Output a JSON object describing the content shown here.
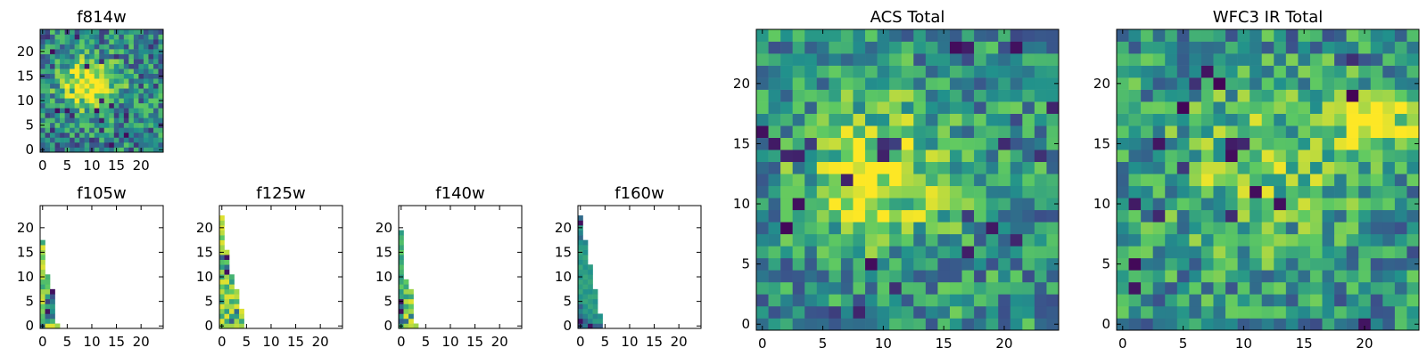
{
  "figure": {
    "colormap": "viridis",
    "colors": [
      "#440154",
      "#3b528b",
      "#21918c",
      "#5ec962",
      "#fde725"
    ]
  },
  "chart_data": [
    {
      "type": "heatmap",
      "title": "f814w",
      "xlim": [
        -0.5,
        24.5
      ],
      "ylim": [
        -0.5,
        24.5
      ],
      "xticks": [
        "0",
        "5",
        "10",
        "15",
        "20"
      ],
      "yticks": [
        "0",
        "5",
        "10",
        "15",
        "20"
      ],
      "grid": false,
      "image": {
        "size": 25,
        "features": [
          {
            "cx": 9.5,
            "cy": 13.5,
            "sx": 4.0,
            "sy": 3.5,
            "amp": 0.6
          }
        ],
        "noise": 0.3,
        "seed": 11,
        "base": 0.45
      }
    },
    {
      "type": "heatmap",
      "title": "f105w",
      "xlim": [
        -0.5,
        24.5
      ],
      "ylim": [
        -0.5,
        24.5
      ],
      "xticks": [
        "0",
        "5",
        "10",
        "15",
        "20"
      ],
      "yticks": [
        "0",
        "5",
        "10",
        "15",
        "20"
      ],
      "grid": false,
      "columns": [
        {
          "x": 0,
          "y_start": 0,
          "values": [
            0.35,
            0.65,
            0.7,
            0.8,
            0.75,
            0.95,
            0.9,
            0.85,
            0.6,
            0.7,
            0.9,
            0.85,
            0.95,
            0.9,
            0.75,
            0.85,
            0.95,
            0.6
          ]
        },
        {
          "x": 1,
          "y_start": 0,
          "values": [
            0.95,
            0.55,
            0.3,
            0.05,
            0.6,
            0.2,
            0.55,
            0.85,
            0.75,
            0.7,
            0.65
          ]
        },
        {
          "x": 2,
          "y_start": 0,
          "values": [
            0.95,
            0.65,
            0.35,
            0.5,
            0.55,
            0.4,
            0.25,
            0.05
          ]
        },
        {
          "x": 3,
          "y_start": 0,
          "values": [
            0.85
          ]
        }
      ]
    },
    {
      "type": "heatmap",
      "title": "f125w",
      "xlim": [
        -0.5,
        24.5
      ],
      "ylim": [
        -0.5,
        24.5
      ],
      "xticks": [
        "0",
        "5",
        "10",
        "15",
        "20"
      ],
      "yticks": [
        "0",
        "5",
        "10",
        "15",
        "20"
      ],
      "grid": false,
      "columns": [
        {
          "x": 0,
          "y_start": 0,
          "values": [
            0.8,
            0.95,
            0.6,
            0.8,
            0.95,
            0.55,
            0.7,
            0.9,
            0.75,
            0.95,
            0.6,
            0.85,
            0.55,
            0.7,
            0.3,
            0.9,
            0.85,
            0.95,
            0.75,
            0.9,
            0.95,
            0.85,
            0.95
          ]
        },
        {
          "x": 1,
          "y_start": 0,
          "values": [
            0.85,
            0.6,
            0.95,
            0.55,
            0.85,
            0.9,
            0.95,
            0.7,
            0.6,
            0.95,
            0.85,
            0.05,
            0.35,
            0.75,
            0.05,
            0.9
          ]
        },
        {
          "x": 2,
          "y_start": 0,
          "values": [
            0.85,
            0.3,
            0.55,
            0.95,
            0.85,
            0.6,
            0.95,
            0.75,
            0.9,
            0.55,
            0.65
          ]
        },
        {
          "x": 3,
          "y_start": 0,
          "values": [
            0.9,
            0.85,
            0.55,
            0.35,
            0.95,
            0.65,
            0.9,
            0.85
          ]
        },
        {
          "x": 4,
          "y_start": 0,
          "values": [
            0.85,
            0.6,
            0.9,
            0.95
          ]
        }
      ]
    },
    {
      "type": "heatmap",
      "title": "f140w",
      "xlim": [
        -0.5,
        24.5
      ],
      "ylim": [
        -0.5,
        24.5
      ],
      "xticks": [
        "0",
        "5",
        "10",
        "15",
        "20"
      ],
      "yticks": [
        "0",
        "5",
        "10",
        "15",
        "20"
      ],
      "grid": false,
      "columns": [
        {
          "x": 0,
          "y_start": 0,
          "values": [
            0.6,
            0.3,
            0.55,
            0.05,
            0.35,
            0.05,
            0.6,
            0.55,
            0.75,
            0.6,
            0.55,
            0.65,
            0.7,
            0.6,
            0.55,
            0.75,
            0.6,
            0.7,
            0.65,
            0.55
          ]
        },
        {
          "x": 1,
          "y_start": 0,
          "values": [
            0.85,
            0.35,
            0.95,
            0.8,
            0.6,
            0.9,
            0.55,
            0.85,
            0.6,
            0.75
          ]
        },
        {
          "x": 2,
          "y_start": 0,
          "values": [
            0.9,
            0.95,
            0.4,
            0.85,
            0.75,
            0.95,
            0.6,
            0.85
          ]
        },
        {
          "x": 3,
          "y_start": 0,
          "values": [
            0.85
          ]
        }
      ]
    },
    {
      "type": "heatmap",
      "title": "f160w",
      "xlim": [
        -0.5,
        24.5
      ],
      "ylim": [
        -0.5,
        24.5
      ],
      "xticks": [
        "0",
        "5",
        "10",
        "15",
        "20"
      ],
      "yticks": [
        "0",
        "5",
        "10",
        "15",
        "20"
      ],
      "grid": false,
      "columns": [
        {
          "x": 0,
          "y_start": 0,
          "values": [
            0.25,
            0.05,
            0.35,
            0.45,
            0.3,
            0.55,
            0.5,
            0.6,
            0.55,
            0.6,
            0.5,
            0.55,
            0.6,
            0.5,
            0.55,
            0.6,
            0.55,
            0.5,
            0.35,
            0.45,
            0.55,
            0.05,
            0.35
          ]
        },
        {
          "x": 1,
          "y_start": 0,
          "values": [
            0.4,
            0.3,
            0.45,
            0.55,
            0.5,
            0.6,
            0.55,
            0.5,
            0.6,
            0.55,
            0.6,
            0.55,
            0.5,
            0.55,
            0.6,
            0.5,
            0.55,
            0.45
          ]
        },
        {
          "x": 2,
          "y_start": 0,
          "values": [
            0.05,
            0.45,
            0.55,
            0.5,
            0.6,
            0.55,
            0.6,
            0.5,
            0.55,
            0.6,
            0.55,
            0.5,
            0.55
          ]
        },
        {
          "x": 3,
          "y_start": 0,
          "values": [
            0.3,
            0.55,
            0.45,
            0.6,
            0.55,
            0.5,
            0.6,
            0.55
          ]
        },
        {
          "x": 4,
          "y_start": 0,
          "values": [
            0.3,
            0.55,
            0.5
          ]
        }
      ]
    },
    {
      "type": "heatmap",
      "title": "ACS Total",
      "xlim": [
        -0.5,
        24.5
      ],
      "ylim": [
        -0.5,
        24.5
      ],
      "xticks": [
        "0",
        "5",
        "10",
        "15",
        "20"
      ],
      "yticks": [
        "0",
        "5",
        "10",
        "15",
        "20"
      ],
      "grid": false,
      "image": {
        "size": 25,
        "features": [
          {
            "cx": 9.5,
            "cy": 12.5,
            "sx": 4.2,
            "sy": 4.2,
            "amp": 0.45
          }
        ],
        "noise": 0.28,
        "seed": 23,
        "base": 0.5
      }
    },
    {
      "type": "heatmap",
      "title": "WFC3 IR Total",
      "xlim": [
        -0.5,
        24.5
      ],
      "ylim": [
        -0.5,
        24.5
      ],
      "xticks": [
        "0",
        "5",
        "10",
        "15",
        "20"
      ],
      "yticks": [
        "0",
        "5",
        "10",
        "15",
        "20"
      ],
      "grid": false,
      "image": {
        "size": 25,
        "features": [
          {
            "cx": 21,
            "cy": 17,
            "sx": 2.5,
            "sy": 2.0,
            "amp": 0.45
          },
          {
            "cx": 11,
            "cy": 13,
            "sx": 6.0,
            "sy": 5.0,
            "amp": 0.25
          }
        ],
        "noise": 0.28,
        "seed": 37,
        "base": 0.5
      }
    }
  ]
}
